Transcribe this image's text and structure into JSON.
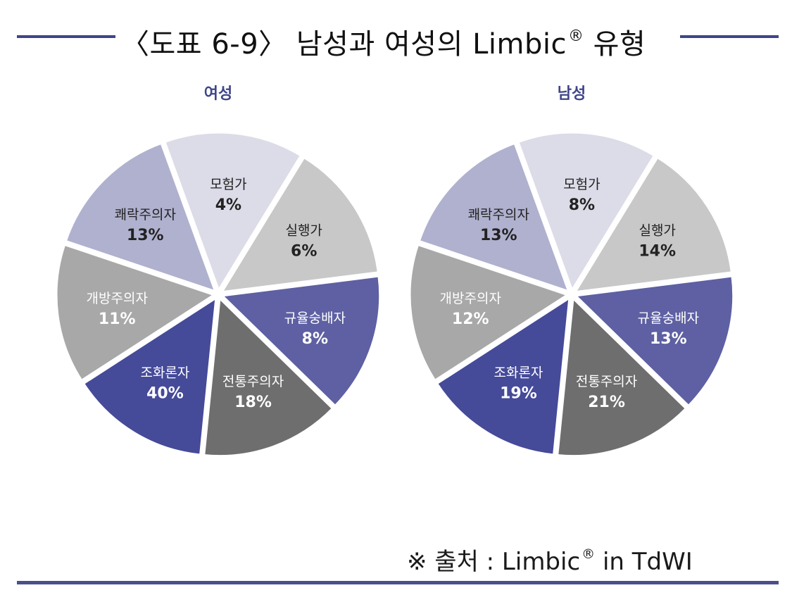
{
  "header": {
    "title": "〈도표 6-9〉 남성과 여성의 Limbic",
    "title_suffix": " 유형",
    "registered_mark": "®"
  },
  "source": {
    "prefix": "※ 출처 : Limbic",
    "registered_mark": "®",
    "suffix": " in TdWI"
  },
  "colors": {
    "accent": "#3f4589",
    "모험가": "#dcdce8",
    "실행가": "#c8c8c8",
    "규율숭배자": "#5e60a3",
    "전통주의자": "#6e6e6e",
    "조화론자": "#454a99",
    "개방주의자": "#a8a8a8",
    "쾌락주의자": "#b0b1cf"
  },
  "chart_data": [
    {
      "type": "pie",
      "title": "여성",
      "slices": [
        {
          "label": "모험가",
          "value": 4,
          "value_label": "4%"
        },
        {
          "label": "실행가",
          "value": 6,
          "value_label": "6%"
        },
        {
          "label": "규율숭배자",
          "value": 8,
          "value_label": "8%"
        },
        {
          "label": "전통주의자",
          "value": 18,
          "value_label": "18%"
        },
        {
          "label": "조화론자",
          "value": 40,
          "value_label": "40%"
        },
        {
          "label": "개방주의자",
          "value": 11,
          "value_label": "11%"
        },
        {
          "label": "쾌락주의자",
          "value": 13,
          "value_label": "13%"
        }
      ]
    },
    {
      "type": "pie",
      "title": "남성",
      "slices": [
        {
          "label": "모험가",
          "value": 8,
          "value_label": "8%"
        },
        {
          "label": "실행가",
          "value": 14,
          "value_label": "14%"
        },
        {
          "label": "규율숭배자",
          "value": 13,
          "value_label": "13%"
        },
        {
          "label": "전통주의자",
          "value": 21,
          "value_label": "21%"
        },
        {
          "label": "조화론자",
          "value": 19,
          "value_label": "19%"
        },
        {
          "label": "개방주의자",
          "value": 12,
          "value_label": "12%"
        },
        {
          "label": "쾌락주의자",
          "value": 13,
          "value_label": "13%"
        }
      ]
    }
  ]
}
